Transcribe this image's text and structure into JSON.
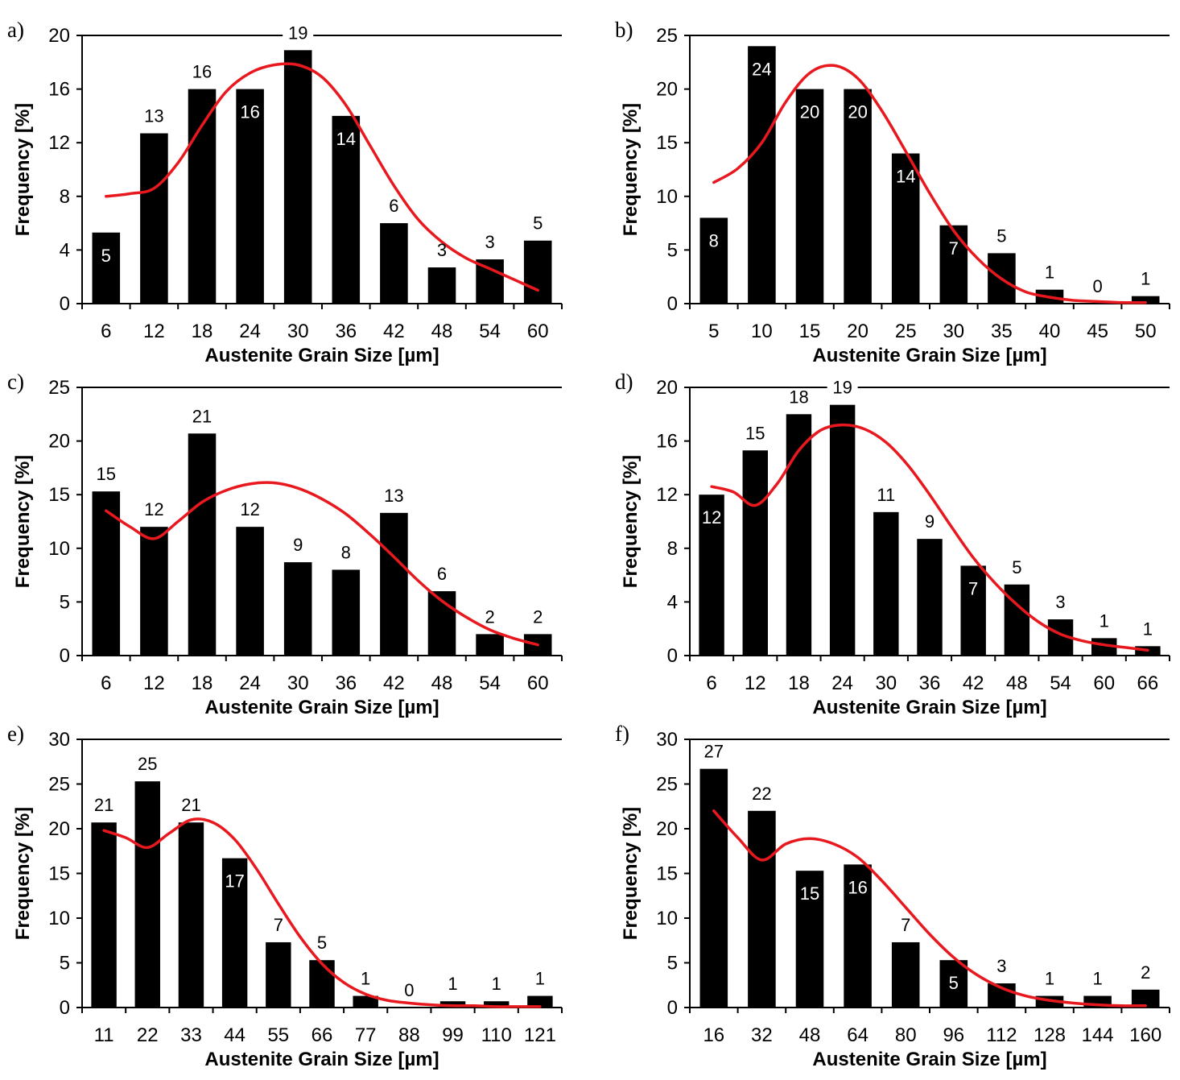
{
  "figure": {
    "description_visible": "Austenite grain size distribution histograms, panels a-f"
  },
  "colors": {
    "bar": "#000000",
    "curve": "#e8191e",
    "axis": "#000000",
    "label_inside": "#ffffff",
    "label_outside": "#000000"
  },
  "chart_data": [
    {
      "panel": "a)",
      "type": "bar",
      "categories": [
        "6",
        "12",
        "18",
        "24",
        "30",
        "36",
        "42",
        "48",
        "54",
        "60"
      ],
      "values": [
        5.3,
        12.7,
        16,
        16,
        18.9,
        14,
        6,
        2.7,
        3.3,
        4.7
      ],
      "data_labels": [
        "5",
        "13",
        "16",
        "16",
        "19",
        "14",
        "6",
        "3",
        "3",
        "5"
      ],
      "label_inside": [
        true,
        false,
        false,
        true,
        false,
        true,
        false,
        false,
        false,
        false
      ],
      "ylim": [
        0,
        20
      ],
      "yticks": [
        0,
        4,
        8,
        12,
        16,
        20
      ],
      "ytick_labels": [
        "0",
        "4",
        "8",
        "12",
        "16",
        "20"
      ],
      "xlabel": "Austenite Grain Size [µm]",
      "ylabel": "Frequency [%]",
      "curve": [
        [
          0,
          8
        ],
        [
          0.5,
          8.2
        ],
        [
          1,
          8.6
        ],
        [
          1.5,
          10.5
        ],
        [
          2,
          13.3
        ],
        [
          2.5,
          15.8
        ],
        [
          3,
          17.2
        ],
        [
          3.5,
          17.8
        ],
        [
          4,
          17.8
        ],
        [
          4.5,
          16.9
        ],
        [
          5,
          14.8
        ],
        [
          5.5,
          11.8
        ],
        [
          6,
          8.8
        ],
        [
          6.5,
          6.3
        ],
        [
          7,
          4.6
        ],
        [
          7.5,
          3.4
        ],
        [
          8,
          2.6
        ],
        [
          8.5,
          1.8
        ],
        [
          9,
          1
        ]
      ]
    },
    {
      "panel": "b)",
      "type": "bar",
      "categories": [
        "5",
        "10",
        "15",
        "20",
        "25",
        "30",
        "35",
        "40",
        "45",
        "50"
      ],
      "values": [
        8,
        24,
        20,
        20,
        14,
        7.3,
        4.7,
        1.3,
        0,
        0.7
      ],
      "data_labels": [
        "8",
        "24",
        "20",
        "20",
        "14",
        "7",
        "5",
        "1",
        "0",
        "1"
      ],
      "label_inside": [
        true,
        true,
        true,
        true,
        true,
        true,
        false,
        false,
        false,
        false
      ],
      "ylim": [
        0,
        25
      ],
      "yticks": [
        0,
        5,
        10,
        15,
        20,
        25
      ],
      "ytick_labels": [
        "0",
        "5",
        "10",
        "15",
        "20",
        "25"
      ],
      "xlabel": "Austenite Grain Size [µm]",
      "ylabel": "Frequency [%]",
      "curve": [
        [
          0,
          11.3
        ],
        [
          0.5,
          12.6
        ],
        [
          1,
          15
        ],
        [
          1.5,
          18.8
        ],
        [
          2,
          21.5
        ],
        [
          2.5,
          22.2
        ],
        [
          3,
          21
        ],
        [
          3.5,
          18
        ],
        [
          4,
          14.2
        ],
        [
          4.5,
          10.3
        ],
        [
          5,
          6.8
        ],
        [
          5.5,
          4.2
        ],
        [
          6,
          2.3
        ],
        [
          6.5,
          1.1
        ],
        [
          7,
          0.6
        ],
        [
          7.5,
          0.3
        ],
        [
          8,
          0.2
        ],
        [
          8.5,
          0.1
        ],
        [
          9,
          0.1
        ]
      ]
    },
    {
      "panel": "c)",
      "type": "bar",
      "categories": [
        "6",
        "12",
        "18",
        "24",
        "30",
        "36",
        "42",
        "48",
        "54",
        "60"
      ],
      "values": [
        15.3,
        12,
        20.7,
        12,
        8.7,
        8,
        13.3,
        6,
        2,
        2
      ],
      "data_labels": [
        "15",
        "12",
        "21",
        "12",
        "9",
        "8",
        "13",
        "6",
        "2",
        "2"
      ],
      "label_inside": [
        false,
        false,
        false,
        false,
        false,
        false,
        false,
        false,
        false,
        false
      ],
      "ylim": [
        0,
        25
      ],
      "yticks": [
        0,
        5,
        10,
        15,
        20,
        25
      ],
      "ytick_labels": [
        "0",
        "5",
        "10",
        "15",
        "20",
        "25"
      ],
      "xlabel": "Austenite Grain Size [µm]",
      "ylabel": "Frequency [%]",
      "curve": [
        [
          0,
          13.5
        ],
        [
          0.5,
          12
        ],
        [
          1,
          10.9
        ],
        [
          1.5,
          12.5
        ],
        [
          2,
          14.3
        ],
        [
          2.5,
          15.4
        ],
        [
          3,
          16
        ],
        [
          3.5,
          16.1
        ],
        [
          4,
          15.6
        ],
        [
          4.5,
          14.6
        ],
        [
          5,
          13.2
        ],
        [
          5.5,
          11.3
        ],
        [
          6,
          9.2
        ],
        [
          6.5,
          7
        ],
        [
          7,
          5.1
        ],
        [
          7.5,
          3.6
        ],
        [
          8,
          2.4
        ],
        [
          8.5,
          1.6
        ],
        [
          9,
          1
        ]
      ]
    },
    {
      "panel": "d)",
      "type": "bar",
      "categories": [
        "6",
        "12",
        "18",
        "24",
        "30",
        "36",
        "42",
        "48",
        "54",
        "60",
        "66"
      ],
      "values": [
        12,
        15.3,
        18,
        18.7,
        10.7,
        8.7,
        6.7,
        5.3,
        2.7,
        1.3,
        0.7
      ],
      "data_labels": [
        "12",
        "15",
        "18",
        "19",
        "11",
        "9",
        "7",
        "5",
        "3",
        "1",
        "1"
      ],
      "label_inside": [
        true,
        false,
        false,
        false,
        false,
        false,
        true,
        false,
        false,
        false,
        false
      ],
      "ylim": [
        0,
        20
      ],
      "yticks": [
        0,
        4,
        8,
        12,
        16,
        20
      ],
      "ytick_labels": [
        "0",
        "4",
        "8",
        "12",
        "16",
        "20"
      ],
      "xlabel": "Austenite Grain Size [µm]",
      "ylabel": "Frequency [%]",
      "curve": [
        [
          0,
          12.6
        ],
        [
          0.5,
          12.2
        ],
        [
          1,
          11.2
        ],
        [
          1.5,
          12.8
        ],
        [
          2,
          15.3
        ],
        [
          2.5,
          16.8
        ],
        [
          3,
          17.2
        ],
        [
          3.5,
          16.9
        ],
        [
          4,
          15.9
        ],
        [
          4.5,
          14.2
        ],
        [
          5,
          12
        ],
        [
          5.5,
          9.6
        ],
        [
          6,
          7.3
        ],
        [
          6.5,
          5.4
        ],
        [
          7,
          3.8
        ],
        [
          7.5,
          2.5
        ],
        [
          8,
          1.6
        ],
        [
          8.5,
          1.1
        ],
        [
          9,
          0.8
        ],
        [
          9.5,
          0.6
        ],
        [
          10,
          0.4
        ]
      ]
    },
    {
      "panel": "e)",
      "type": "bar",
      "categories": [
        "11",
        "22",
        "33",
        "44",
        "55",
        "66",
        "77",
        "88",
        "99",
        "110",
        "121"
      ],
      "values": [
        20.7,
        25.3,
        20.7,
        16.7,
        7.3,
        5.3,
        1.3,
        0,
        0.7,
        0.7,
        1.3
      ],
      "data_labels": [
        "21",
        "25",
        "21",
        "17",
        "7",
        "5",
        "1",
        "0",
        "1",
        "1",
        "1"
      ],
      "label_inside": [
        false,
        false,
        false,
        true,
        false,
        false,
        false,
        false,
        false,
        false,
        false
      ],
      "ylim": [
        0,
        30
      ],
      "yticks": [
        0,
        5,
        10,
        15,
        20,
        25,
        30
      ],
      "ytick_labels": [
        "0",
        "5",
        "10",
        "15",
        "20",
        "25",
        "30"
      ],
      "xlabel": "Austenite Grain Size [µm]",
      "ylabel": "Frequency [%]",
      "curve": [
        [
          0,
          19.8
        ],
        [
          0.5,
          19
        ],
        [
          1,
          17.9
        ],
        [
          1.5,
          19.5
        ],
        [
          2,
          21
        ],
        [
          2.5,
          20.7
        ],
        [
          3,
          18.8
        ],
        [
          3.5,
          15.5
        ],
        [
          4,
          11.6
        ],
        [
          4.5,
          7.9
        ],
        [
          5,
          4.9
        ],
        [
          5.5,
          2.8
        ],
        [
          6,
          1.5
        ],
        [
          6.5,
          0.8
        ],
        [
          7,
          0.5
        ],
        [
          7.5,
          0.3
        ],
        [
          8,
          0.2
        ],
        [
          8.5,
          0.2
        ],
        [
          9,
          0.1
        ],
        [
          9.5,
          0.1
        ],
        [
          10,
          0.1
        ]
      ]
    },
    {
      "panel": "f)",
      "type": "bar",
      "categories": [
        "16",
        "32",
        "48",
        "64",
        "80",
        "96",
        "112",
        "128",
        "144",
        "160"
      ],
      "values": [
        26.7,
        22,
        15.3,
        16,
        7.3,
        5.3,
        2.7,
        1.3,
        1.3,
        2
      ],
      "data_labels": [
        "27",
        "22",
        "15",
        "16",
        "7",
        "5",
        "3",
        "1",
        "1",
        "2"
      ],
      "label_inside": [
        false,
        false,
        true,
        true,
        false,
        true,
        false,
        false,
        false,
        false
      ],
      "ylim": [
        0,
        30
      ],
      "yticks": [
        0,
        5,
        10,
        15,
        20,
        25,
        30
      ],
      "ytick_labels": [
        "0",
        "5",
        "10",
        "15",
        "20",
        "25",
        "30"
      ],
      "xlabel": "Austenite Grain Size [µm]",
      "ylabel": "Frequency [%]",
      "curve": [
        [
          0,
          22
        ],
        [
          0.5,
          19
        ],
        [
          1,
          16.5
        ],
        [
          1.5,
          18.3
        ],
        [
          2,
          18.9
        ],
        [
          2.5,
          18.3
        ],
        [
          3,
          16.8
        ],
        [
          3.5,
          14.2
        ],
        [
          4,
          11.2
        ],
        [
          4.5,
          8.2
        ],
        [
          5,
          5.6
        ],
        [
          5.5,
          3.6
        ],
        [
          6,
          2.2
        ],
        [
          6.5,
          1.3
        ],
        [
          7,
          0.8
        ],
        [
          7.5,
          0.5
        ],
        [
          8,
          0.3
        ],
        [
          8.5,
          0.2
        ],
        [
          9,
          0.2
        ]
      ]
    }
  ]
}
